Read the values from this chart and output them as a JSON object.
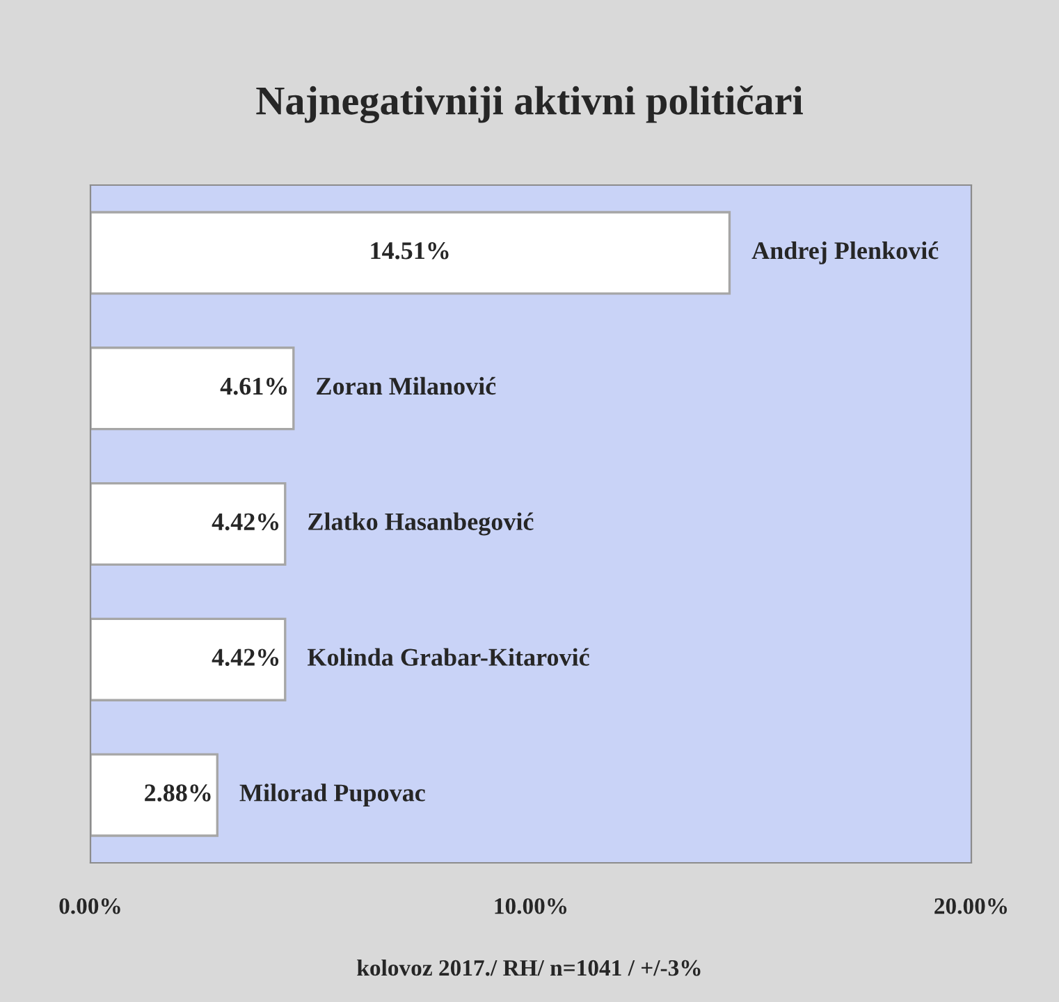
{
  "chart_data": {
    "type": "bar",
    "orientation": "horizontal",
    "title": "Najnegativniji aktivni političari",
    "categories": [
      "Andrej Plenković",
      "Zoran Milanović",
      "Zlatko Hasanbegović",
      "Kolinda Grabar-Kitarović",
      "Milorad Pupovac"
    ],
    "values": [
      14.51,
      4.61,
      4.42,
      4.42,
      2.88
    ],
    "value_labels": [
      "14.51%",
      "4.61%",
      "4.42%",
      "4.42%",
      "2.88%"
    ],
    "color": "#ffffff",
    "xlim": [
      0,
      20
    ],
    "xticks": [
      {
        "value": 0,
        "label": "0.00%"
      },
      {
        "value": 10,
        "label": "10.00%"
      },
      {
        "value": 20,
        "label": "20.00%"
      }
    ],
    "tick_labels": "x",
    "grid": false,
    "legend": false,
    "annotations": [
      "kolovoz 2017./ RH/ n=1041 / +/-3%"
    ]
  }
}
